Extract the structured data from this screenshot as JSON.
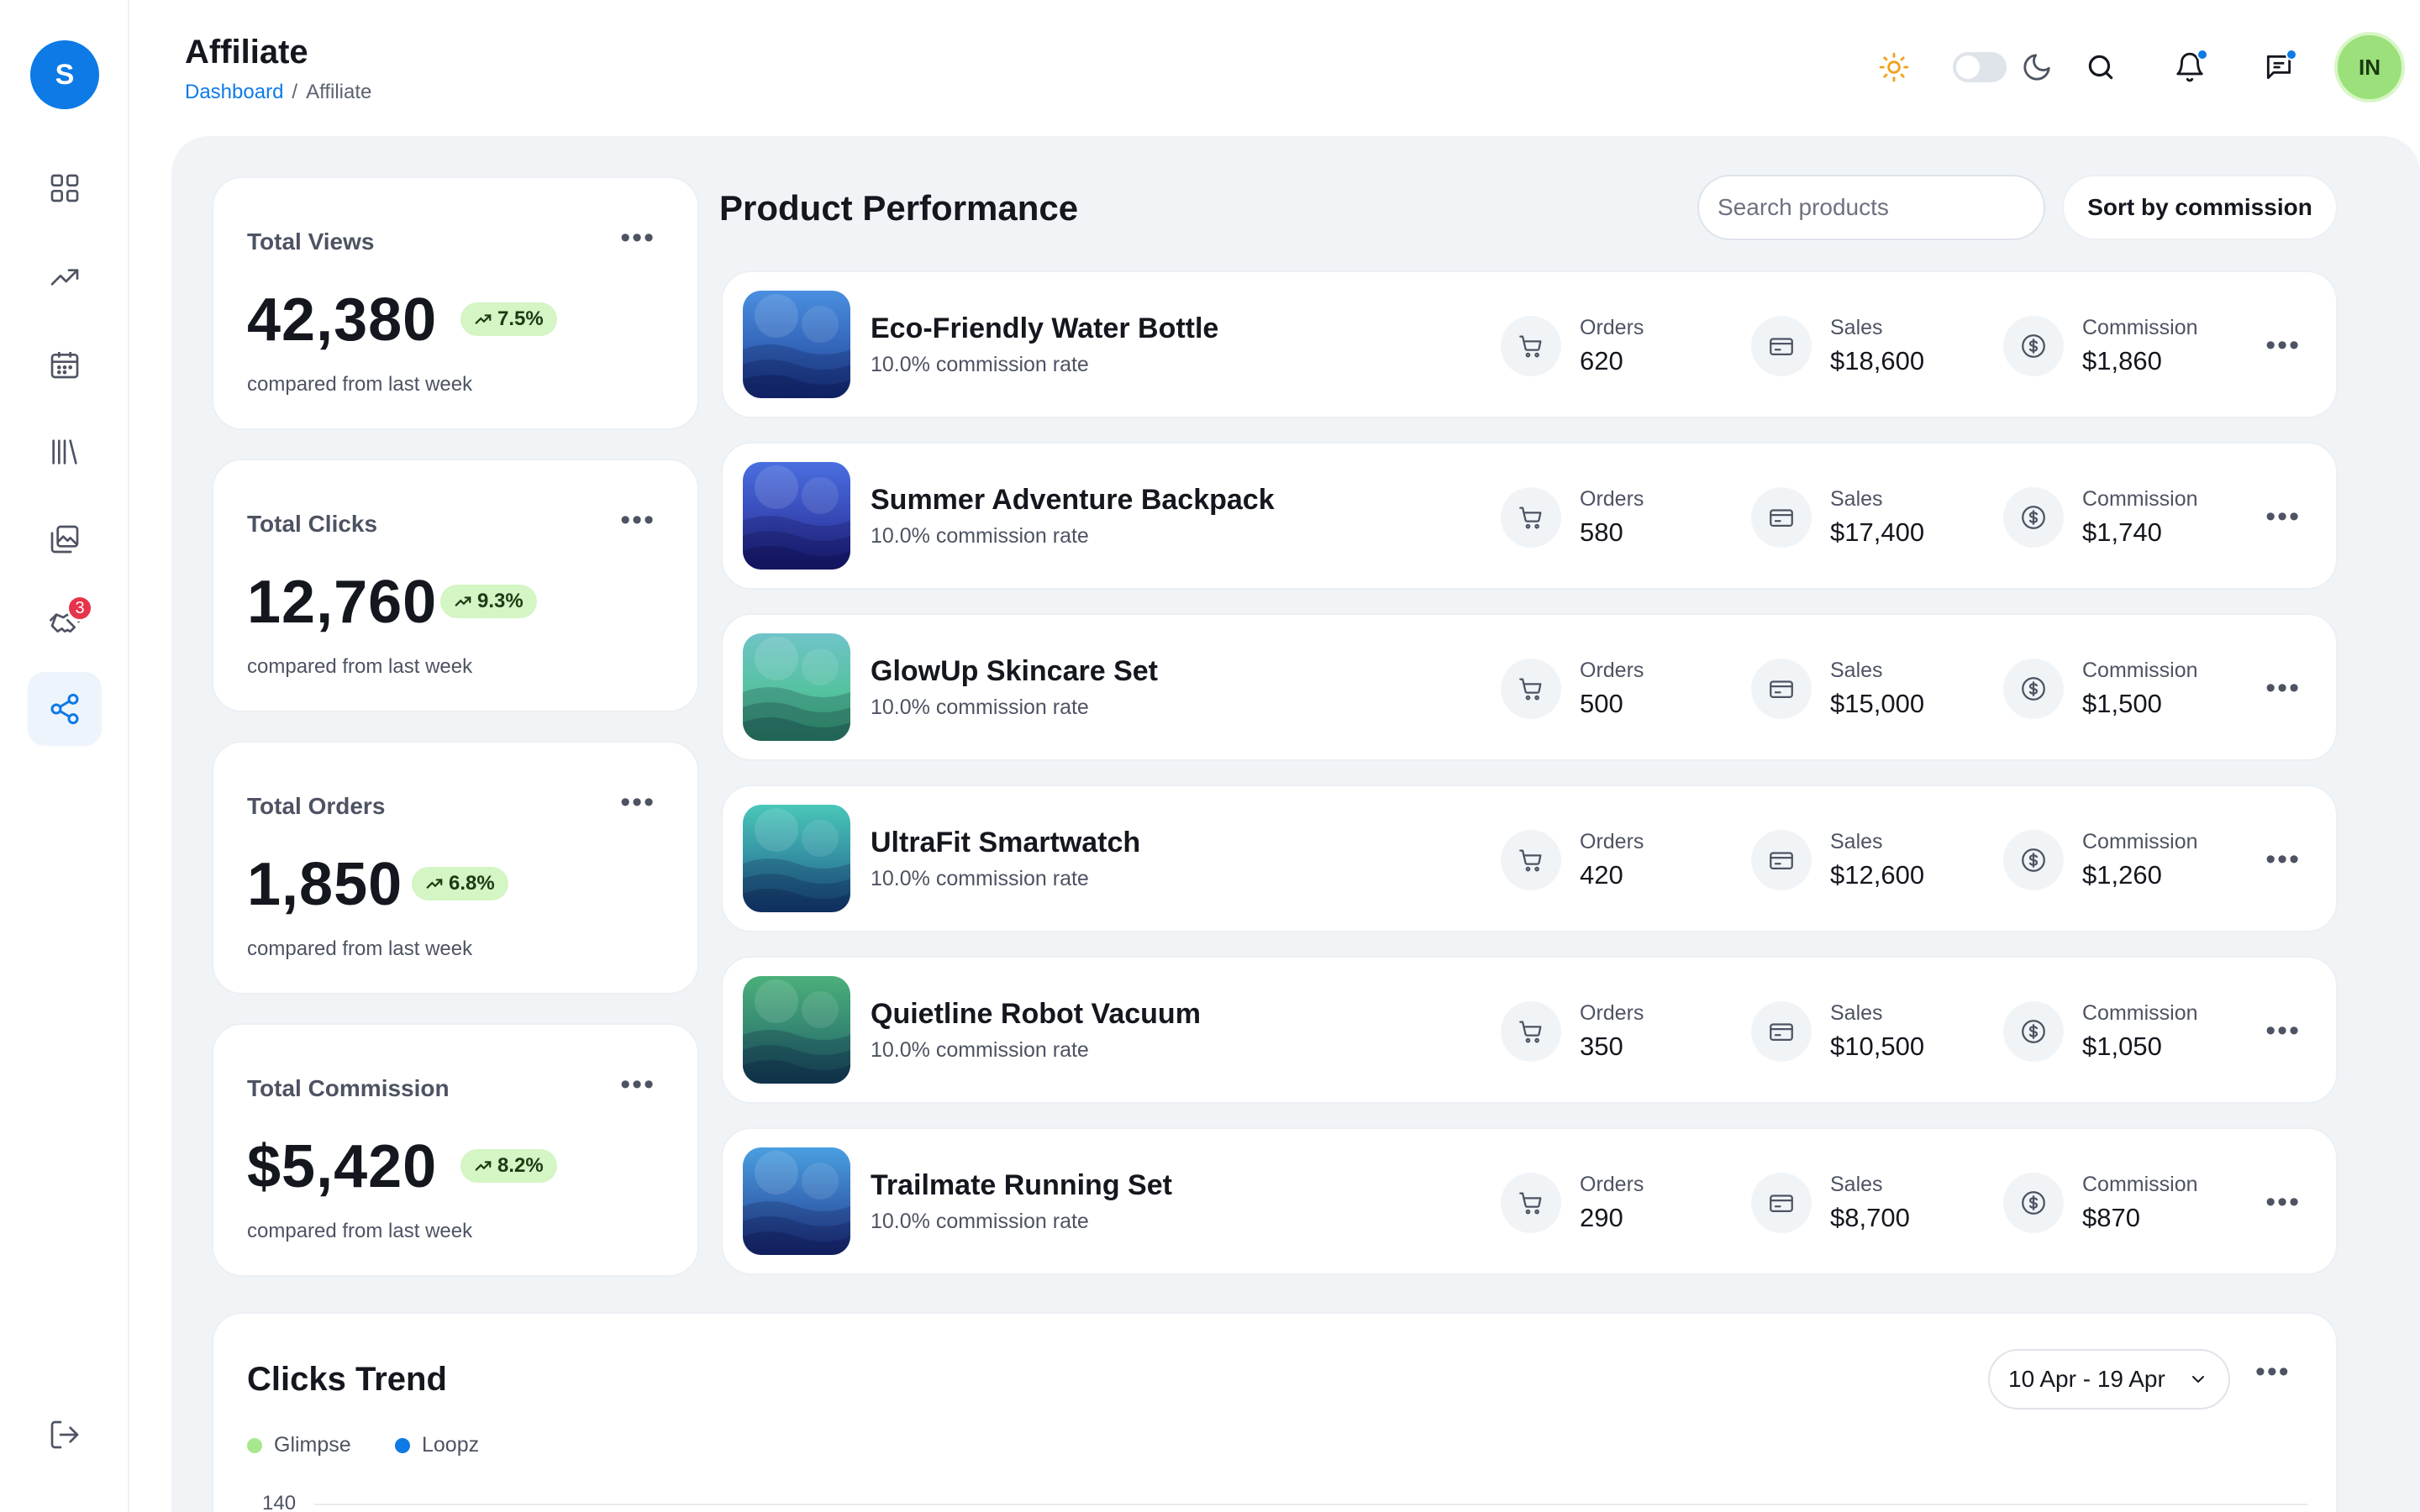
{
  "header": {
    "title": "Affiliate",
    "breadcrumb": {
      "home": "Dashboard",
      "separator": "/",
      "current": "Affiliate"
    },
    "avatar_initials": "IN"
  },
  "sidebar": {
    "logo_letter": "S",
    "items": [
      {
        "icon": "grid-icon"
      },
      {
        "icon": "trending-up-icon"
      },
      {
        "icon": "calendar-icon"
      },
      {
        "icon": "library-icon"
      },
      {
        "icon": "gallery-icon"
      },
      {
        "icon": "handshake-icon",
        "badge": "3"
      },
      {
        "icon": "share-icon",
        "active": true
      }
    ],
    "logout_icon": "logout-icon"
  },
  "stats": [
    {
      "label": "Total Views",
      "value": "42,380",
      "change": "7.5%",
      "sub": "compared from last week"
    },
    {
      "label": "Total Clicks",
      "value": "12,760",
      "change": "9.3%",
      "sub": "compared from last week"
    },
    {
      "label": "Total Orders",
      "value": "1,850",
      "change": "6.8%",
      "sub": "compared from last week"
    },
    {
      "label": "Total Commission",
      "value": "$5,420",
      "change": "8.2%",
      "sub": "compared from last week"
    }
  ],
  "products": {
    "title": "Product Performance",
    "search_placeholder": "Search products",
    "sort_label": "Sort by commission",
    "metric_labels": {
      "orders": "Orders",
      "sales": "Sales",
      "commission": "Commission"
    },
    "items": [
      {
        "name": "Eco-Friendly Water Bottle",
        "rate": "10.0% commission rate",
        "orders": "620",
        "sales": "$18,600",
        "commission": "$1,860",
        "colors": [
          "#4a8fe0",
          "#1f3f96"
        ]
      },
      {
        "name": "Summer Adventure Backpack",
        "rate": "10.0% commission rate",
        "orders": "580",
        "sales": "$17,400",
        "commission": "$1,740",
        "colors": [
          "#4a6fe0",
          "#25258f"
        ]
      },
      {
        "name": "GlowUp Skincare Set",
        "rate": "10.0% commission rate",
        "orders": "500",
        "sales": "$15,000",
        "commission": "$1,500",
        "colors": [
          "#6fc4c8",
          "#3fbf7d"
        ]
      },
      {
        "name": "UltraFit Smartwatch",
        "rate": "10.0% commission rate",
        "orders": "420",
        "sales": "$12,600",
        "commission": "$1,260",
        "colors": [
          "#49c7b8",
          "#1f5a8f"
        ]
      },
      {
        "name": "Quietline Robot Vacuum",
        "rate": "10.0% commission rate",
        "orders": "350",
        "sales": "$10,500",
        "commission": "$1,050",
        "colors": [
          "#4bb07a",
          "#1f5f6a"
        ]
      },
      {
        "name": "Trailmate Running Set",
        "rate": "10.0% commission rate",
        "orders": "290",
        "sales": "$8,700",
        "commission": "$870",
        "colors": [
          "#4a9fe0",
          "#233a8f"
        ]
      }
    ]
  },
  "trend": {
    "title": "Clicks Trend",
    "date_range": "10 Apr - 19 Apr",
    "legend": [
      {
        "name": "Glimpse",
        "color": "#a7e88e"
      },
      {
        "name": "Loopz",
        "color": "#0d7ae6"
      }
    ],
    "y_top_tick": "140"
  }
}
